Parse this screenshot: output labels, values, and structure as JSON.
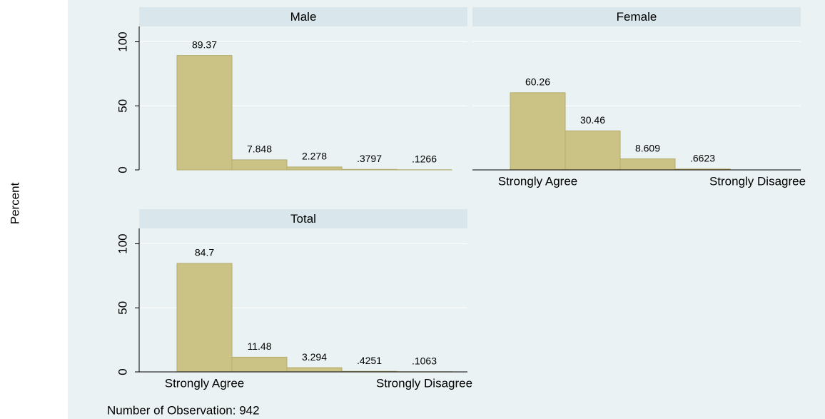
{
  "y_label": "Percent",
  "note": "Number of Observation: 942",
  "chart_data": [
    {
      "type": "bar",
      "title": "Male",
      "values": [
        89.37,
        7.848,
        2.278,
        0.3797,
        0.1266
      ],
      "value_labels": [
        "89.37",
        "7.848",
        "2.278",
        ".3797",
        ".1266"
      ],
      "color": "#cbc386",
      "ylim": [
        0,
        112
      ],
      "yticks": [
        0,
        50,
        100
      ],
      "grid": true,
      "show_yticks": true
    },
    {
      "type": "bar",
      "title": "Female",
      "categories": [
        "Strongly Agree",
        null,
        null,
        null,
        "Strongly Disagree"
      ],
      "values": [
        60.26,
        30.46,
        8.609,
        0.6623,
        null
      ],
      "value_labels": [
        "60.26",
        "30.46",
        "8.609",
        ".6623",
        null
      ],
      "color": "#cbc386",
      "ylim": [
        0,
        112
      ],
      "yticks": [
        0,
        50,
        100
      ],
      "grid": true,
      "show_yticks": false
    },
    {
      "type": "bar",
      "title": "Total",
      "categories": [
        "Strongly Agree",
        null,
        null,
        null,
        "Strongly Disagree"
      ],
      "values": [
        84.7,
        11.48,
        3.294,
        0.4251,
        0.1063
      ],
      "value_labels": [
        "84.7",
        "11.48",
        "3.294",
        ".4251",
        ".1063"
      ],
      "color": "#cbc386",
      "ylim": [
        0,
        112
      ],
      "yticks": [
        0,
        50,
        100
      ],
      "grid": true,
      "show_yticks": true
    }
  ]
}
